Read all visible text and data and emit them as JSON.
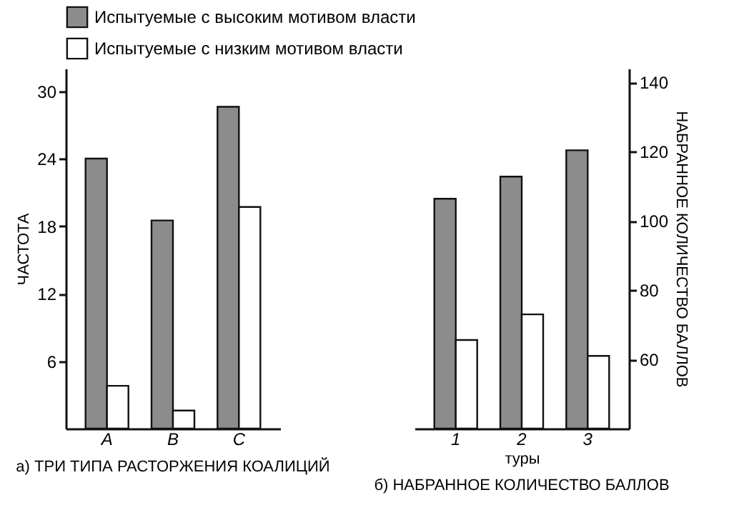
{
  "chart_data": [
    {
      "type": "bar",
      "title": "а) ТРИ ТИПА РАСТОРЖЕНИЯ КОАЛИЦИЙ",
      "ylabel": "ЧАСТОТА",
      "categories": [
        "A",
        "B",
        "C"
      ],
      "ylim": [
        0,
        32
      ],
      "yticks": [
        6,
        12,
        18,
        24,
        30
      ],
      "legend": "top",
      "grid": false,
      "series": [
        {
          "name": "Испытуемые с высоким мотивом власти",
          "color": "#8c8c8c",
          "values": [
            24,
            18.5,
            28.6
          ]
        },
        {
          "name": "Испытуемые с низким мотивом власти",
          "color": "#ffffff",
          "values": [
            3.8,
            1.6,
            19.7
          ]
        }
      ]
    },
    {
      "type": "bar",
      "title": "б) НАБРАННОЕ КОЛИЧЕСТВО БАЛЛОВ",
      "xlabel": "туры",
      "y2label": "НАБРАННОЕ КОЛИЧЕСТВО БАЛЛОВ",
      "categories": [
        "1",
        "2",
        "3"
      ],
      "y2lim": [
        40,
        144
      ],
      "y2ticks": [
        60,
        80,
        100,
        120,
        140
      ],
      "legend": "top",
      "grid": false,
      "series": [
        {
          "name": "Испытуемые с высоким мотивом власти",
          "color": "#8c8c8c",
          "axis": "y2",
          "values": [
            106.4,
            112.8,
            120.4
          ]
        },
        {
          "name": "Испытуемые с низким мотивом власти",
          "color": "#ffffff",
          "axis": "y2",
          "values": [
            65.6,
            73,
            61
          ]
        }
      ]
    }
  ]
}
